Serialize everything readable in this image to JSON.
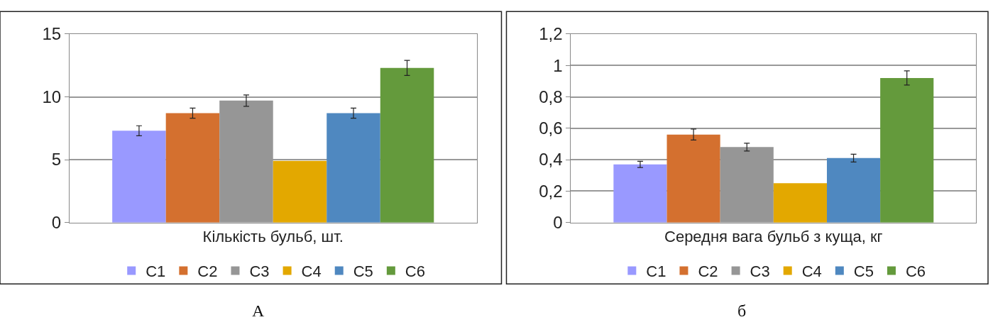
{
  "chart_data": [
    {
      "type": "bar",
      "categories": [
        "Кількість бульб, шт."
      ],
      "ylim": [
        0,
        15
      ],
      "yticks": [
        0,
        5,
        10,
        15
      ],
      "grid": "y",
      "legend": "bottom",
      "annotations": [
        "А"
      ],
      "series": [
        {
          "name": "C1",
          "color": "#9999ff",
          "values": [
            7.3
          ],
          "errors": [
            0.4
          ]
        },
        {
          "name": "C2",
          "color": "#d4702f",
          "values": [
            8.7
          ],
          "errors": [
            0.4
          ]
        },
        {
          "name": "C3",
          "color": "#969696",
          "values": [
            9.7
          ],
          "errors": [
            0.45
          ]
        },
        {
          "name": "C4",
          "color": "#e3a800",
          "values": [
            4.9
          ]
        },
        {
          "name": "C5",
          "color": "#4f88c0",
          "values": [
            8.7
          ],
          "errors": [
            0.4
          ]
        },
        {
          "name": "C6",
          "color": "#649a3c",
          "values": [
            12.3
          ],
          "errors": [
            0.6
          ]
        }
      ]
    },
    {
      "type": "bar",
      "categories": [
        "Середня вага бульб з куща, кг"
      ],
      "ylim": [
        0,
        1.2
      ],
      "yticks": [
        0,
        {
          "value": 0.2,
          "label": "0,2"
        },
        {
          "value": 0.4,
          "label": "0,4"
        },
        {
          "value": 0.6,
          "label": "0,6"
        },
        {
          "value": 0.8,
          "label": "0,8"
        },
        1,
        {
          "value": 1.2,
          "label": "1,2"
        }
      ],
      "grid": "y",
      "legend": "bottom",
      "annotations": [
        "б"
      ],
      "series": [
        {
          "name": "C1",
          "color": "#9999ff",
          "values": [
            0.37
          ],
          "errors": [
            0.02
          ]
        },
        {
          "name": "C2",
          "color": "#d4702f",
          "values": [
            0.56
          ],
          "errors": [
            0.035
          ]
        },
        {
          "name": "C3",
          "color": "#969696",
          "values": [
            0.48
          ],
          "errors": [
            0.025
          ]
        },
        {
          "name": "C4",
          "color": "#e3a800",
          "values": [
            0.25
          ]
        },
        {
          "name": "C5",
          "color": "#4f88c0",
          "values": [
            0.41
          ],
          "errors": [
            0.025
          ]
        },
        {
          "name": "C6",
          "color": "#649a3c",
          "values": [
            0.92
          ],
          "errors": [
            0.045
          ]
        }
      ]
    }
  ]
}
